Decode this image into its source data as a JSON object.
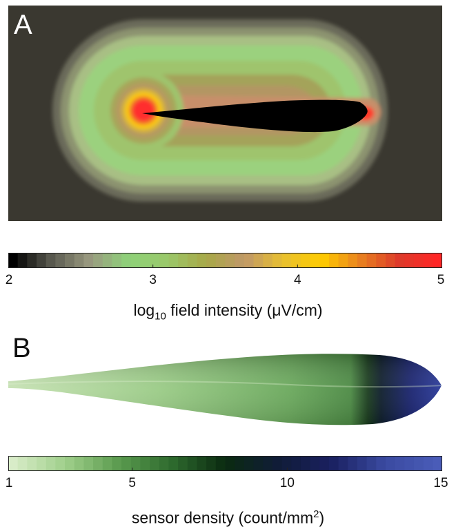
{
  "panels": {
    "a_letter": "A",
    "b_letter": "B"
  },
  "chart_data": [
    {
      "type": "heatmap",
      "panel": "A",
      "title": "",
      "colorbar": {
        "label_prefix": "log",
        "label_sub": "10",
        "label_suffix": " field intensity (μV/cm)",
        "ticks": [
          "2",
          "3",
          "4",
          "5"
        ],
        "tick_values": [
          2,
          3,
          4,
          5
        ],
        "range": [
          2,
          5
        ],
        "colors": [
          "#000000",
          "#5a5a50",
          "#9a9a80",
          "#8ed27a",
          "#9ac86a",
          "#a8a848",
          "#c09868",
          "#e8c030",
          "#ffcc00",
          "#e88020",
          "#dd3a2a",
          "#ff2626"
        ]
      }
    },
    {
      "type": "heatmap",
      "panel": "B",
      "title": "",
      "colorbar": {
        "label_prefix": "sensor density (count/mm",
        "label_sup": "2",
        "label_suffix": ")",
        "ticks": [
          "1",
          "5",
          "10",
          "15"
        ],
        "tick_values": [
          1,
          5,
          10,
          15
        ],
        "range": [
          1,
          15
        ],
        "colors": [
          "#d8ecc8",
          "#9fcf8a",
          "#5a9a4e",
          "#2e6a2e",
          "#0a2a10",
          "#101c38",
          "#1a2060",
          "#3a4aa0",
          "#4a5cb8"
        ]
      }
    }
  ]
}
